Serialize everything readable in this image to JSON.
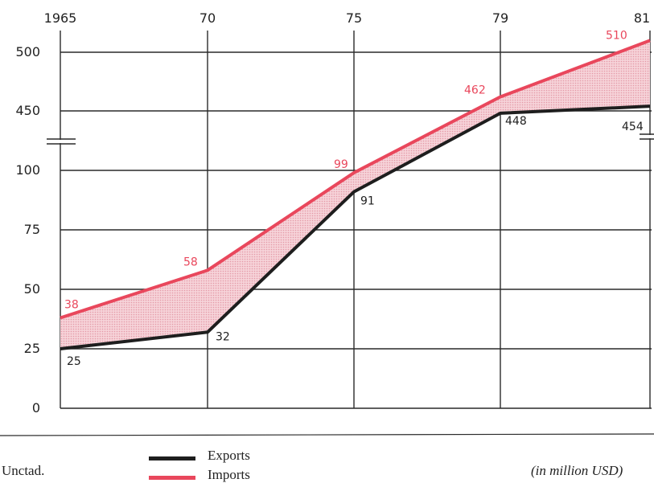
{
  "chart_data": {
    "type": "line",
    "x": [
      "1965",
      "70",
      "75",
      "79",
      "81"
    ],
    "y_ticks": [
      "0",
      "25",
      "50",
      "75",
      "100",
      "450",
      "500"
    ],
    "series": [
      {
        "name": "Exports",
        "values": [
          25,
          32,
          91,
          448,
          454
        ],
        "color": "#1e1e1e"
      },
      {
        "name": "Imports",
        "values": [
          38,
          58,
          99,
          462,
          510
        ],
        "color": "#e9475c"
      }
    ],
    "data_labels": {
      "exports": [
        "25",
        "32",
        "91",
        "448",
        "454"
      ],
      "imports": [
        "38",
        "58",
        "99",
        "462",
        "510"
      ]
    },
    "axis_break": true,
    "fill_between": true,
    "fill_color": "#f2c8cf",
    "unit": "(in million USD)",
    "source": "Unctad.",
    "legend": [
      "Exports",
      "Imports"
    ],
    "grid": true
  }
}
